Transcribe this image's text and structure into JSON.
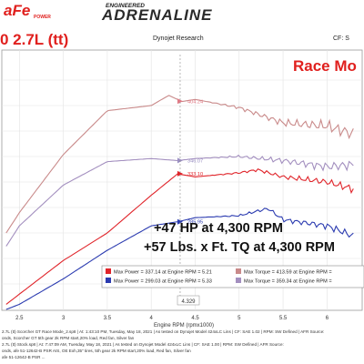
{
  "brand": {
    "logo_text": "aFe",
    "logo_sub": "POWER",
    "engineered": "ENGINEERED",
    "adrenaline": "ADRENALINE"
  },
  "header": {
    "title_fragment": "0 2.7L (tt)",
    "dynojet": "Dynojet Research",
    "cf": "CF: S"
  },
  "mode_label": "Race Mo",
  "gains": {
    "hp": "+47 HP at 4,300 RPM",
    "tq": "+57 Lbs. x Ft. TQ at 4,300 RPM"
  },
  "legend_box": {
    "row1_left": "Max Power = 337.14 at Engine RPM = 5.21",
    "row1_right": "Max Torque = 413.59 at Engine RPM =",
    "row2_left": "Max Power = 299.03 at Engine RPM = 5.33",
    "row2_right": "Max Torque = 359.34 at Engine RPM ="
  },
  "footer_lines": [
    "2.7L (tt) Scorcher GT Race Mode_2.sp8 | At: 1:43:10 PM, Tuesday, May 18, 2021 | As tested on Dynojet Model 424xLC Lins | CF: SAE 1.02 | RPM: SW Defined | AFR Source:",
    "onds, Scorcher GT 5th gear 2k RPM start,20% load, Red fan, Silver fan",
    "2.7L (tt) Stock.sp8 | At: 7:47:09 AM, Tuesday, May 18, 2021 | As tested on Dynojet Model 424xLC Lins | CF: SAE 1.00 | RPM: SW Defined | AFR Source:",
    "onds, afe 51-12642-B PSR AIS, OE Exh,35\" tires, 5th gear 2k RPM start,20% load, Red fan, Silver fan",
    "afe 51-12642-B PSR ..."
  ],
  "colors": {
    "brand_red": "#e0201e",
    "race_power": "#e0242a",
    "race_torque": "#c98a8a",
    "stock_power": "#2b3bb0",
    "stock_torque": "#a38fbf",
    "grid": "#e3e3e3"
  },
  "chart_data": {
    "type": "line",
    "xlabel": "Engine RPM (rpmx1000)",
    "x_ticks": [
      "2.5",
      "3",
      "3.5",
      "4",
      "4.5",
      "5",
      "5.5",
      "6"
    ],
    "xlim": [
      2.3,
      6.4
    ],
    "ylim": [
      200,
      450
    ],
    "grid": true,
    "marker_rpm": "4.329",
    "annotations": [
      "404.24",
      "346.07",
      "333.10",
      "285.95"
    ],
    "series": [
      {
        "key": "race_torque",
        "x": [
          2.35,
          2.5,
          3.0,
          3.5,
          4.0,
          4.2,
          4.35,
          4.5,
          5.0,
          5.5,
          6.0,
          6.3
        ],
        "y": [
          275,
          295,
          352,
          395,
          400,
          410,
          404,
          406,
          398,
          383,
          380,
          372
        ]
      },
      {
        "key": "stock_torque",
        "x": [
          2.35,
          2.5,
          3.0,
          3.5,
          4.0,
          4.3,
          4.5,
          5.0,
          5.5,
          6.0,
          6.3
        ],
        "y": [
          262,
          282,
          322,
          345,
          348,
          346,
          348,
          350,
          346,
          340,
          342
        ]
      },
      {
        "key": "race_power",
        "x": [
          2.35,
          2.5,
          3.0,
          3.5,
          4.0,
          4.3,
          4.5,
          5.0,
          5.21,
          5.5,
          6.0,
          6.3
        ],
        "y": [
          205,
          215,
          248,
          275,
          312,
          333,
          330,
          334,
          337,
          330,
          325,
          318
        ]
      },
      {
        "key": "stock_power",
        "x": [
          2.35,
          2.5,
          3.0,
          3.5,
          4.0,
          4.3,
          4.5,
          5.0,
          5.33,
          5.5,
          6.0,
          6.3
        ],
        "y": [
          200,
          205,
          230,
          258,
          282,
          286,
          290,
          292,
          299,
          288,
          282,
          272
        ]
      }
    ],
    "legend": [
      {
        "series": "race_power",
        "label": "Max Power = 337.14 at Engine RPM = 5.21"
      },
      {
        "series": "race_torque",
        "label": "Max Torque = 413.59 at Engine RPM ="
      },
      {
        "series": "stock_power",
        "label": "Max Power = 299.03 at Engine RPM = 5.33"
      },
      {
        "series": "stock_torque",
        "label": "Max Torque = 359.34 at Engine RPM ="
      }
    ]
  }
}
